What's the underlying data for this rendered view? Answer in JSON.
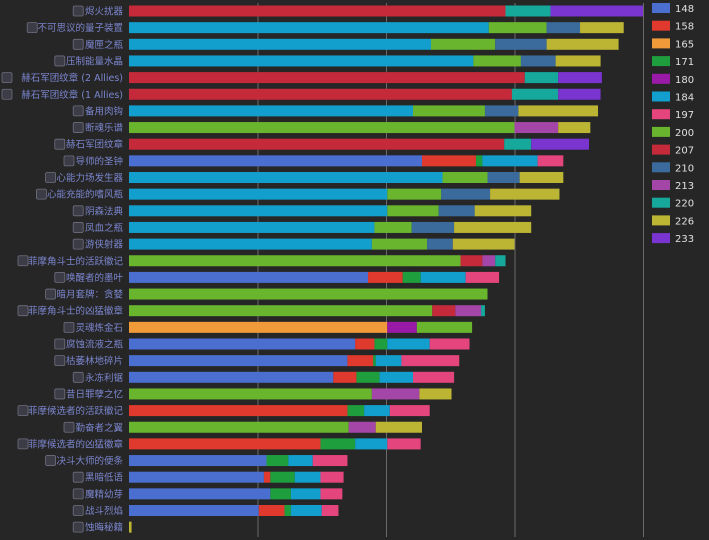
{
  "chart_data": {
    "type": "bar",
    "orientation": "horizontal",
    "stacked": true,
    "title": "",
    "xlabel": "",
    "ylabel": "",
    "xlim": [
      0,
      4.6
    ],
    "grid": true,
    "legend_position": "right",
    "series": [
      {
        "name": "148",
        "color": "#4a6fd0"
      },
      {
        "name": "158",
        "color": "#e0392d"
      },
      {
        "name": "165",
        "color": "#f19a3a"
      },
      {
        "name": "171",
        "color": "#1f9e3e"
      },
      {
        "name": "180",
        "color": "#9a1aa8"
      },
      {
        "name": "184",
        "color": "#139fcd"
      },
      {
        "name": "197",
        "color": "#e5457d"
      },
      {
        "name": "200",
        "color": "#6ab52e"
      },
      {
        "name": "207",
        "color": "#c42a3a"
      },
      {
        "name": "210",
        "color": "#3b6b9c"
      },
      {
        "name": "213",
        "color": "#a446a8"
      },
      {
        "name": "220",
        "color": "#16a89b"
      },
      {
        "name": "226",
        "color": "#bcb433"
      },
      {
        "name": "233",
        "color": "#7a34d0"
      }
    ],
    "items": [
      {
        "name": "烬火扰器",
        "icon": "trinket-icon",
        "segments": [
          {
            "s": "207",
            "v": 2.93
          },
          {
            "s": "220",
            "v": 0.35
          },
          {
            "s": "233",
            "v": 0.72
          }
        ]
      },
      {
        "name": "不可思议的量子装置",
        "icon": "trinket-icon",
        "segments": [
          {
            "s": "184",
            "v": 2.8
          },
          {
            "s": "200",
            "v": 0.45
          },
          {
            "s": "210",
            "v": 0.26
          },
          {
            "s": "226",
            "v": 0.34
          }
        ]
      },
      {
        "name": "魔匣之瓶",
        "icon": "trinket-icon",
        "segments": [
          {
            "s": "184",
            "v": 2.35
          },
          {
            "s": "200",
            "v": 0.5
          },
          {
            "s": "210",
            "v": 0.4
          },
          {
            "s": "226",
            "v": 0.56
          }
        ]
      },
      {
        "name": "压制能量水晶",
        "icon": "trinket-icon",
        "segments": [
          {
            "s": "184",
            "v": 2.68
          },
          {
            "s": "200",
            "v": 0.37
          },
          {
            "s": "210",
            "v": 0.27
          },
          {
            "s": "226",
            "v": 0.35
          }
        ]
      },
      {
        "name": "赫石军团纹章 (2 Allies)",
        "icon": "trinket-icon",
        "segments": [
          {
            "s": "207",
            "v": 3.08
          },
          {
            "s": "220",
            "v": 0.26
          },
          {
            "s": "233",
            "v": 0.34
          }
        ]
      },
      {
        "name": "赫石军团纹章 (1 Allies)",
        "icon": "trinket-icon",
        "segments": [
          {
            "s": "207",
            "v": 2.98
          },
          {
            "s": "220",
            "v": 0.36
          },
          {
            "s": "233",
            "v": 0.33
          }
        ]
      },
      {
        "name": "备用肉钩",
        "icon": "trinket-icon",
        "segments": [
          {
            "s": "184",
            "v": 2.21
          },
          {
            "s": "200",
            "v": 0.56
          },
          {
            "s": "210",
            "v": 0.26
          },
          {
            "s": "226",
            "v": 0.62
          }
        ]
      },
      {
        "name": "断魂乐谱",
        "icon": "trinket-icon",
        "segments": [
          {
            "s": "200",
            "v": 3.0
          },
          {
            "s": "213",
            "v": 0.34
          },
          {
            "s": "226",
            "v": 0.25
          }
        ]
      },
      {
        "name": "赫石军团纹章",
        "icon": "trinket-icon",
        "segments": [
          {
            "s": "207",
            "v": 2.92
          },
          {
            "s": "220",
            "v": 0.21
          },
          {
            "s": "233",
            "v": 0.45
          }
        ]
      },
      {
        "name": "导师的圣钟",
        "icon": "trinket-icon",
        "segments": [
          {
            "s": "148",
            "v": 2.28
          },
          {
            "s": "158",
            "v": 0.42
          },
          {
            "s": "171",
            "v": 0.05
          },
          {
            "s": "184",
            "v": 0.43
          },
          {
            "s": "197",
            "v": 0.2
          }
        ]
      },
      {
        "name": "心能力场发生器",
        "icon": "trinket-icon",
        "segments": [
          {
            "s": "184",
            "v": 2.44
          },
          {
            "s": "200",
            "v": 0.35
          },
          {
            "s": "210",
            "v": 0.25
          },
          {
            "s": "226",
            "v": 0.34
          }
        ]
      },
      {
        "name": "心能充能的嗜风瓶",
        "icon": "trinket-icon",
        "segments": [
          {
            "s": "184",
            "v": 2.01
          },
          {
            "s": "200",
            "v": 0.42
          },
          {
            "s": "210",
            "v": 0.38
          },
          {
            "s": "226",
            "v": 0.54
          }
        ]
      },
      {
        "name": "阴森法典",
        "icon": "trinket-icon",
        "segments": [
          {
            "s": "184",
            "v": 2.01
          },
          {
            "s": "200",
            "v": 0.4
          },
          {
            "s": "210",
            "v": 0.28
          },
          {
            "s": "226",
            "v": 0.44
          }
        ]
      },
      {
        "name": "凤血之瓶",
        "icon": "trinket-icon",
        "segments": [
          {
            "s": "184",
            "v": 1.91
          },
          {
            "s": "200",
            "v": 0.29
          },
          {
            "s": "210",
            "v": 0.33
          },
          {
            "s": "226",
            "v": 0.6
          }
        ]
      },
      {
        "name": "游侠射器",
        "icon": "trinket-icon",
        "segments": [
          {
            "s": "184",
            "v": 1.89
          },
          {
            "s": "200",
            "v": 0.43
          },
          {
            "s": "210",
            "v": 0.2
          },
          {
            "s": "226",
            "v": 0.48
          }
        ]
      },
      {
        "name": "菲摩角斗士的活跃徽记",
        "icon": "trinket-icon",
        "segments": [
          {
            "s": "200",
            "v": 2.58
          },
          {
            "s": "207",
            "v": 0.17
          },
          {
            "s": "213",
            "v": 0.1
          },
          {
            "s": "220",
            "v": 0.08
          }
        ]
      },
      {
        "name": "唤醒者的墨叶",
        "icon": "trinket-icon",
        "segments": [
          {
            "s": "148",
            "v": 1.86
          },
          {
            "s": "158",
            "v": 0.27
          },
          {
            "s": "171",
            "v": 0.14
          },
          {
            "s": "184",
            "v": 0.35
          },
          {
            "s": "197",
            "v": 0.26
          }
        ]
      },
      {
        "name": "暗月套牌：贪婪",
        "icon": "trinket-icon",
        "segments": [
          {
            "s": "200",
            "v": 2.79
          }
        ]
      },
      {
        "name": "菲摩角斗士的凶猛徽章",
        "icon": "trinket-icon",
        "segments": [
          {
            "s": "200",
            "v": 2.36
          },
          {
            "s": "207",
            "v": 0.18
          },
          {
            "s": "213",
            "v": 0.2
          },
          {
            "s": "220",
            "v": 0.03
          }
        ]
      },
      {
        "name": "灵魂炼金石",
        "icon": "trinket-icon",
        "segments": [
          {
            "s": "165",
            "v": 2.01
          },
          {
            "s": "180",
            "v": 0.23
          },
          {
            "s": "200",
            "v": 0.43
          }
        ]
      },
      {
        "name": "腐蚀流液之瓶",
        "icon": "trinket-icon",
        "segments": [
          {
            "s": "148",
            "v": 1.76
          },
          {
            "s": "158",
            "v": 0.15
          },
          {
            "s": "171",
            "v": 0.1
          },
          {
            "s": "184",
            "v": 0.33
          },
          {
            "s": "197",
            "v": 0.31
          }
        ]
      },
      {
        "name": "枯萎林地碎片",
        "icon": "trinket-icon",
        "segments": [
          {
            "s": "148",
            "v": 1.7
          },
          {
            "s": "158",
            "v": 0.2
          },
          {
            "s": "171",
            "v": 0.02
          },
          {
            "s": "184",
            "v": 0.2
          },
          {
            "s": "197",
            "v": 0.45
          }
        ]
      },
      {
        "name": "永冻利锯",
        "icon": "trinket-icon",
        "segments": [
          {
            "s": "148",
            "v": 1.59
          },
          {
            "s": "158",
            "v": 0.18
          },
          {
            "s": "171",
            "v": 0.18
          },
          {
            "s": "184",
            "v": 0.26
          },
          {
            "s": "197",
            "v": 0.32
          }
        ]
      },
      {
        "name": "昔日罪孽之忆",
        "icon": "trinket-icon",
        "segments": [
          {
            "s": "200",
            "v": 1.89
          },
          {
            "s": "213",
            "v": 0.37
          },
          {
            "s": "226",
            "v": 0.25
          }
        ]
      },
      {
        "name": "菲摩候选者的活跃徽记",
        "icon": "trinket-icon",
        "segments": [
          {
            "s": "158",
            "v": 1.7
          },
          {
            "s": "171",
            "v": 0.13
          },
          {
            "s": "184",
            "v": 0.2
          },
          {
            "s": "197",
            "v": 0.31
          }
        ]
      },
      {
        "name": "勤奋者之翼",
        "icon": "trinket-icon",
        "segments": [
          {
            "s": "200",
            "v": 1.71
          },
          {
            "s": "213",
            "v": 0.21
          },
          {
            "s": "226",
            "v": 0.36
          }
        ]
      },
      {
        "name": "菲摩候选者的凶猛徽章",
        "icon": "trinket-icon",
        "segments": [
          {
            "s": "158",
            "v": 1.49
          },
          {
            "s": "171",
            "v": 0.27
          },
          {
            "s": "184",
            "v": 0.25
          },
          {
            "s": "197",
            "v": 0.26
          }
        ]
      },
      {
        "name": "决斗大师的便条",
        "icon": "trinket-icon",
        "segments": [
          {
            "s": "148",
            "v": 1.07
          },
          {
            "s": "171",
            "v": 0.17
          },
          {
            "s": "184",
            "v": 0.19
          },
          {
            "s": "197",
            "v": 0.27
          }
        ]
      },
      {
        "name": "黑暗低语",
        "icon": "trinket-icon",
        "segments": [
          {
            "s": "148",
            "v": 1.05
          },
          {
            "s": "158",
            "v": 0.05
          },
          {
            "s": "171",
            "v": 0.19
          },
          {
            "s": "184",
            "v": 0.2
          },
          {
            "s": "197",
            "v": 0.18
          }
        ]
      },
      {
        "name": "魔精幼芽",
        "icon": "trinket-icon",
        "segments": [
          {
            "s": "148",
            "v": 1.1
          },
          {
            "s": "171",
            "v": 0.16
          },
          {
            "s": "184",
            "v": 0.23
          },
          {
            "s": "197",
            "v": 0.17
          }
        ]
      },
      {
        "name": "战斗烈焰",
        "icon": "trinket-icon",
        "segments": [
          {
            "s": "148",
            "v": 1.01
          },
          {
            "s": "158",
            "v": 0.2
          },
          {
            "s": "171",
            "v": 0.05
          },
          {
            "s": "184",
            "v": 0.24
          },
          {
            "s": "197",
            "v": 0.13
          }
        ]
      },
      {
        "name": "蚀晦秘籍",
        "icon": "trinket-icon",
        "segments": [
          {
            "s": "226",
            "v": 0.02
          }
        ]
      }
    ]
  }
}
